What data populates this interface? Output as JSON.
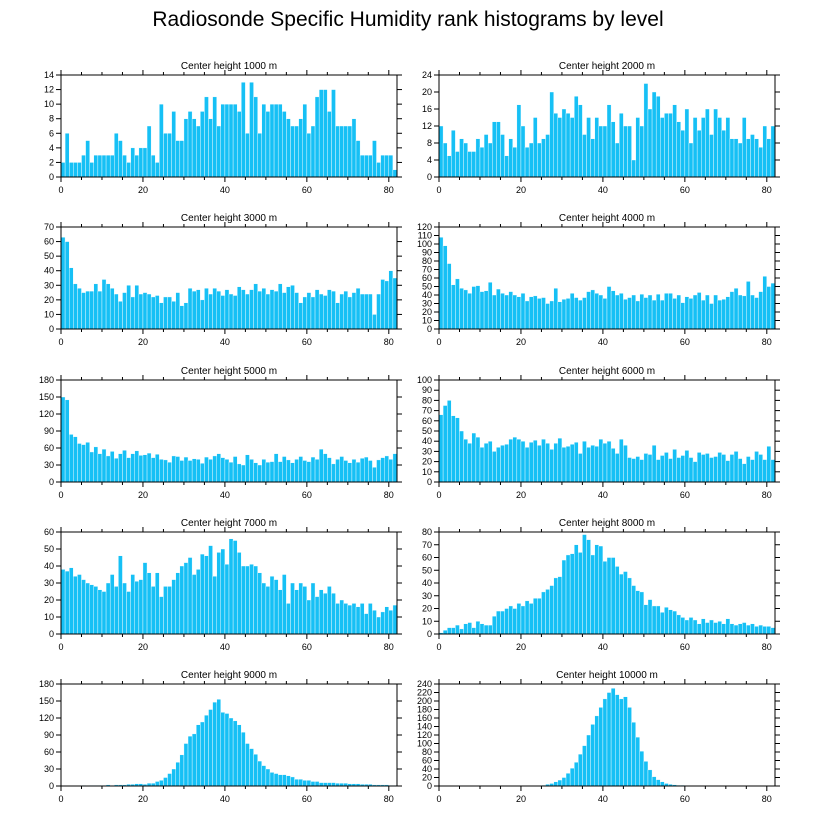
{
  "title": "Radiosonde Specific Humidity rank histograms by level",
  "colors": {
    "bar": "#16c0f5",
    "axis": "#000000",
    "background": "#ffffff"
  },
  "chart_data": [
    {
      "type": "bar",
      "title": "Center height 1000 m",
      "xlim": [
        0,
        82
      ],
      "ylim": [
        0,
        14
      ],
      "yticks": [
        0,
        2,
        4,
        6,
        8,
        10,
        12,
        14
      ],
      "xticks": [
        0,
        20,
        40,
        60,
        80
      ],
      "values": [
        2,
        6,
        2,
        2,
        2,
        3,
        5,
        2,
        3,
        3,
        3,
        3,
        3,
        6,
        5,
        3,
        2,
        4,
        3,
        4,
        4,
        7,
        3,
        2,
        10,
        6,
        6,
        9,
        5,
        5,
        8,
        9,
        8,
        7,
        9,
        11,
        8,
        11,
        7,
        10,
        10,
        10,
        10,
        9,
        13,
        6,
        13,
        11,
        6,
        10,
        9,
        10,
        10,
        10,
        9,
        8,
        7,
        7,
        8,
        10,
        6,
        7,
        11,
        12,
        12,
        9,
        12,
        7,
        7,
        7,
        7,
        8,
        5,
        3,
        3,
        3,
        5,
        2,
        3,
        3,
        3,
        1
      ]
    },
    {
      "type": "bar",
      "title": "Center height 2000 m",
      "xlim": [
        0,
        82
      ],
      "ylim": [
        0,
        24
      ],
      "yticks": [
        0,
        4,
        8,
        12,
        16,
        20,
        24
      ],
      "xticks": [
        0,
        20,
        40,
        60,
        80
      ],
      "values": [
        12,
        8,
        5,
        11,
        6,
        9,
        8,
        6,
        6,
        9,
        7,
        10,
        8,
        13,
        13,
        10,
        5,
        9,
        7,
        17,
        12,
        7,
        8,
        14,
        8,
        9,
        10,
        20,
        15,
        14,
        16,
        15,
        14,
        19,
        17,
        10,
        14,
        9,
        14,
        12,
        12,
        17,
        13,
        8,
        15,
        12,
        12,
        4,
        14,
        12,
        22,
        16,
        20,
        19,
        14,
        15,
        15,
        17,
        13,
        11,
        16,
        8,
        14,
        11,
        14,
        16,
        10,
        16,
        14,
        11,
        14,
        9,
        9,
        8,
        14,
        9,
        10,
        9,
        7,
        12,
        9,
        12
      ]
    },
    {
      "type": "bar",
      "title": "Center height 3000 m",
      "xlim": [
        0,
        82
      ],
      "ylim": [
        0,
        70
      ],
      "yticks": [
        0,
        10,
        20,
        30,
        40,
        50,
        60,
        70
      ],
      "xticks": [
        0,
        20,
        40,
        60,
        80
      ],
      "values": [
        63,
        60,
        42,
        31,
        28,
        25,
        26,
        26,
        31,
        26,
        34,
        31,
        28,
        24,
        19,
        25,
        30,
        22,
        30,
        24,
        25,
        24,
        22,
        23,
        18,
        22,
        22,
        19,
        25,
        16,
        18,
        28,
        26,
        27,
        20,
        28,
        24,
        28,
        26,
        23,
        27,
        24,
        23,
        29,
        27,
        24,
        27,
        31,
        26,
        28,
        24,
        27,
        26,
        31,
        25,
        29,
        30,
        25,
        18,
        22,
        25,
        22,
        27,
        24,
        23,
        27,
        26,
        18,
        24,
        26,
        22,
        25,
        28,
        24,
        24,
        24,
        10,
        24,
        34,
        33,
        40,
        35
      ]
    },
    {
      "type": "bar",
      "title": "Center height 4000 m",
      "xlim": [
        0,
        82
      ],
      "ylim": [
        0,
        120
      ],
      "yticks": [
        0,
        10,
        20,
        30,
        40,
        50,
        60,
        70,
        80,
        90,
        100,
        110,
        120
      ],
      "xticks": [
        0,
        20,
        40,
        60,
        80
      ],
      "values": [
        108,
        98,
        77,
        52,
        59,
        48,
        46,
        42,
        50,
        51,
        44,
        45,
        55,
        40,
        47,
        42,
        40,
        44,
        40,
        38,
        42,
        33,
        38,
        39,
        36,
        37,
        30,
        33,
        48,
        32,
        35,
        36,
        42,
        37,
        34,
        37,
        44,
        46,
        42,
        40,
        36,
        50,
        45,
        40,
        42,
        35,
        37,
        40,
        33,
        41,
        37,
        40,
        34,
        41,
        34,
        42,
        42,
        36,
        40,
        31,
        38,
        36,
        40,
        43,
        34,
        40,
        30,
        40,
        34,
        35,
        38,
        44,
        48,
        40,
        39,
        56,
        40,
        37,
        44,
        62,
        50,
        54
      ]
    },
    {
      "type": "bar",
      "title": "Center height 5000 m",
      "xlim": [
        0,
        82
      ],
      "ylim": [
        0,
        180
      ],
      "yticks": [
        0,
        30,
        60,
        90,
        120,
        150,
        180
      ],
      "xticks": [
        0,
        20,
        40,
        60,
        80
      ],
      "values": [
        150,
        145,
        84,
        80,
        68,
        66,
        70,
        53,
        62,
        50,
        58,
        46,
        54,
        42,
        50,
        56,
        43,
        50,
        55,
        47,
        48,
        51,
        43,
        49,
        40,
        39,
        35,
        46,
        45,
        38,
        44,
        38,
        41,
        40,
        33,
        44,
        40,
        46,
        50,
        43,
        40,
        35,
        45,
        32,
        30,
        48,
        40,
        34,
        30,
        40,
        35,
        36,
        50,
        36,
        45,
        39,
        34,
        40,
        45,
        38,
        36,
        44,
        40,
        58,
        50,
        43,
        32,
        40,
        45,
        38,
        34,
        40,
        35,
        42,
        44,
        38,
        26,
        39,
        43,
        46,
        40,
        50
      ]
    },
    {
      "type": "bar",
      "title": "Center height 6000 m",
      "xlim": [
        0,
        82
      ],
      "ylim": [
        0,
        100
      ],
      "yticks": [
        0,
        10,
        20,
        30,
        40,
        50,
        60,
        70,
        80,
        90,
        100
      ],
      "xticks": [
        0,
        20,
        40,
        60,
        80
      ],
      "values": [
        66,
        75,
        80,
        65,
        63,
        50,
        42,
        38,
        48,
        44,
        34,
        38,
        40,
        30,
        34,
        36,
        37,
        42,
        44,
        42,
        40,
        34,
        39,
        41,
        36,
        42,
        38,
        32,
        38,
        43,
        34,
        35,
        37,
        39,
        28,
        40,
        34,
        36,
        35,
        42,
        38,
        40,
        33,
        28,
        42,
        36,
        24,
        23,
        25,
        22,
        28,
        27,
        36,
        22,
        26,
        29,
        23,
        32,
        24,
        26,
        31,
        24,
        20,
        29,
        27,
        28,
        24,
        25,
        29,
        27,
        21,
        27,
        30,
        23,
        18,
        25,
        22,
        30,
        27,
        22,
        35,
        22
      ]
    },
    {
      "type": "bar",
      "title": "Center height 7000 m",
      "xlim": [
        0,
        82
      ],
      "ylim": [
        0,
        60
      ],
      "yticks": [
        0,
        10,
        20,
        30,
        40,
        50,
        60
      ],
      "xticks": [
        0,
        20,
        40,
        60,
        80
      ],
      "values": [
        38,
        37,
        39,
        34,
        35,
        32,
        30,
        29,
        28,
        26,
        25,
        30,
        35,
        28,
        46,
        30,
        25,
        35,
        31,
        32,
        42,
        36,
        28,
        36,
        22,
        28,
        28,
        32,
        36,
        40,
        42,
        45,
        35,
        38,
        47,
        46,
        52,
        34,
        48,
        50,
        41,
        56,
        55,
        48,
        40,
        40,
        41,
        40,
        36,
        30,
        28,
        34,
        32,
        26,
        35,
        18,
        30,
        26,
        30,
        28,
        20,
        30,
        22,
        26,
        24,
        28,
        24,
        18,
        20,
        18,
        17,
        18,
        16,
        18,
        12,
        18,
        14,
        10,
        13,
        16,
        14,
        17
      ]
    },
    {
      "type": "bar",
      "title": "Center height 8000 m",
      "xlim": [
        0,
        82
      ],
      "ylim": [
        0,
        80
      ],
      "yticks": [
        0,
        10,
        20,
        30,
        40,
        50,
        60,
        70,
        80
      ],
      "xticks": [
        0,
        20,
        40,
        60,
        80
      ],
      "values": [
        1,
        3,
        5,
        5,
        7,
        4,
        8,
        9,
        5,
        10,
        8,
        7,
        7,
        14,
        18,
        18,
        20,
        22,
        20,
        24,
        22,
        26,
        24,
        28,
        28,
        33,
        35,
        38,
        44,
        45,
        58,
        62,
        63,
        70,
        64,
        78,
        74,
        62,
        70,
        69,
        57,
        60,
        60,
        53,
        47,
        49,
        44,
        38,
        34,
        33,
        23,
        27,
        22,
        22,
        17,
        21,
        19,
        18,
        15,
        13,
        11,
        13,
        11,
        8,
        12,
        9,
        11,
        9,
        10,
        8,
        12,
        8,
        7,
        8,
        9,
        7,
        8,
        6,
        7,
        6,
        6,
        5
      ]
    },
    {
      "type": "bar",
      "title": "Center height 9000 m",
      "xlim": [
        0,
        82
      ],
      "ylim": [
        0,
        180
      ],
      "yticks": [
        0,
        30,
        60,
        90,
        120,
        150,
        180
      ],
      "xticks": [
        0,
        20,
        40,
        60,
        80
      ],
      "values": [
        0,
        0,
        0,
        0,
        0,
        1,
        0,
        1,
        1,
        1,
        1,
        2,
        1,
        2,
        2,
        2,
        3,
        3,
        4,
        4,
        3,
        5,
        5,
        8,
        10,
        15,
        22,
        30,
        42,
        55,
        75,
        88,
        92,
        108,
        113,
        125,
        135,
        148,
        153,
        130,
        128,
        120,
        115,
        108,
        95,
        75,
        66,
        56,
        44,
        36,
        30,
        24,
        22,
        20,
        20,
        18,
        16,
        12,
        12,
        10,
        10,
        8,
        8,
        6,
        6,
        6,
        6,
        5,
        5,
        5,
        4,
        4,
        4,
        3,
        3,
        3,
        2,
        2,
        2,
        2,
        1,
        1
      ]
    },
    {
      "type": "bar",
      "title": "Center height 10000 m",
      "xlim": [
        0,
        82
      ],
      "ylim": [
        0,
        240
      ],
      "yticks": [
        0,
        20,
        40,
        60,
        80,
        100,
        120,
        140,
        160,
        180,
        200,
        220,
        240
      ],
      "xticks": [
        0,
        20,
        40,
        60,
        80
      ],
      "values": [
        0,
        0,
        0,
        0,
        0,
        0,
        0,
        0,
        0,
        0,
        0,
        0,
        0,
        0,
        0,
        0,
        0,
        0,
        0,
        0,
        0,
        0,
        0,
        1,
        1,
        2,
        4,
        6,
        10,
        14,
        20,
        30,
        42,
        56,
        75,
        95,
        120,
        145,
        165,
        185,
        205,
        220,
        230,
        215,
        205,
        210,
        185,
        150,
        115,
        82,
        58,
        38,
        22,
        15,
        10,
        6,
        4,
        3,
        2,
        2,
        1,
        1,
        1,
        0,
        0,
        0,
        0,
        0,
        0,
        0,
        0,
        0,
        0,
        0,
        0,
        0,
        0,
        0,
        0,
        0,
        0,
        0
      ]
    }
  ]
}
